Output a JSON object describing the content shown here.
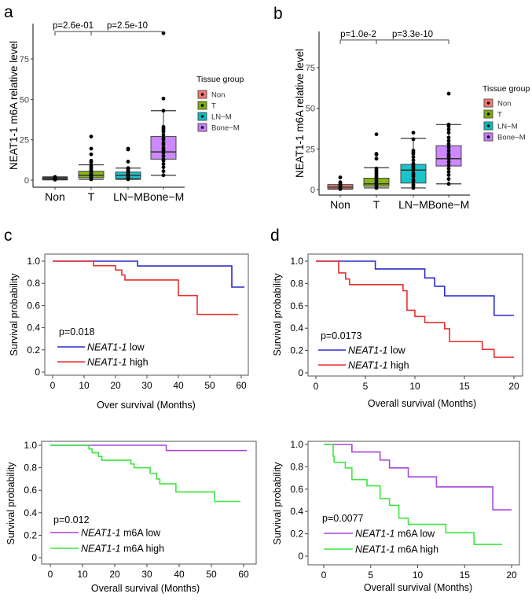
{
  "panels": [
    "a",
    "b",
    "c",
    "d"
  ],
  "chart_data": [
    {
      "type": "box",
      "panel": "a",
      "ylabel": "NEAT1-1 m6A relative level",
      "categories": [
        "Non",
        "T",
        "LN−M",
        "Bone−M"
      ],
      "colors": [
        "#F8766D",
        "#7CAE00",
        "#00BFC4",
        "#C77CFF"
      ],
      "yticks": [
        0,
        25,
        50,
        75
      ],
      "ylim": [
        -4,
        97
      ],
      "boxes": [
        {
          "low": 0.2,
          "q1": 0.5,
          "median": 1,
          "q3": 1.5,
          "high": 2,
          "points": [
            0.3,
            0.6,
            0.8,
            1,
            1.2,
            1.5,
            2
          ]
        },
        {
          "low": 0.5,
          "q1": 1.5,
          "median": 3,
          "q3": 5.5,
          "high": 9.5,
          "points": [
            0.5,
            1,
            1.5,
            2,
            2.5,
            3,
            3.5,
            4,
            5,
            6,
            7,
            8,
            9,
            11,
            12,
            16,
            19.5,
            27
          ]
        },
        {
          "low": 0.5,
          "q1": 1,
          "median": 3,
          "q3": 5,
          "high": 7.5,
          "points": [
            0.5,
            1,
            1.5,
            2,
            2.5,
            3,
            4,
            5,
            6,
            7,
            7.5,
            11.5,
            19,
            19.5
          ]
        },
        {
          "low": 3,
          "q1": 13,
          "median": 17.5,
          "q3": 27,
          "high": 43,
          "points": [
            3,
            5.5,
            8,
            10,
            12,
            13,
            15,
            17,
            18,
            19,
            20,
            22,
            23,
            25,
            26,
            28,
            30,
            31,
            32,
            33,
            43,
            50.5,
            91
          ]
        }
      ],
      "comparisons": [
        {
          "label": "p=2.6e-01",
          "from": 0,
          "to": 1,
          "y": 92
        },
        {
          "label": "p=2.5e-10",
          "from": 1,
          "to": 3,
          "y": 92
        }
      ],
      "legend": {
        "title": "Tissue group",
        "items": [
          "Non",
          "T",
          "LN−M",
          "Bone−M"
        ],
        "placement": "right"
      }
    },
    {
      "type": "box",
      "panel": "b",
      "ylabel": "NEAT1-1 m6A relative level",
      "categories": [
        "Non",
        "T",
        "LN−M",
        "Bone−M"
      ],
      "colors": [
        "#F8766D",
        "#7CAE00",
        "#00BFC4",
        "#C77CFF"
      ],
      "yticks": [
        0,
        25,
        50,
        75
      ],
      "ylim": [
        -4,
        97
      ],
      "boxes": [
        {
          "low": 0.3,
          "q1": 0.5,
          "median": 1.5,
          "q3": 3,
          "high": 3,
          "points": [
            0.3,
            0.8,
            1.2,
            1.8,
            2.5,
            3,
            4,
            4.5,
            7.5
          ]
        },
        {
          "low": 1,
          "q1": 2,
          "median": 3.5,
          "q3": 7,
          "high": 13.5,
          "points": [
            1,
            1.5,
            2,
            3,
            4,
            5,
            6,
            7,
            8,
            9,
            10,
            11,
            12,
            13,
            19,
            21.5,
            22,
            34
          ]
        },
        {
          "low": 1,
          "q1": 4,
          "median": 12,
          "q3": 15.5,
          "high": 31.5,
          "points": [
            1,
            2,
            3,
            5,
            6,
            8,
            9,
            10,
            12,
            13,
            14,
            15,
            16,
            18,
            20,
            22,
            23,
            24,
            31,
            35
          ]
        },
        {
          "low": 3.5,
          "q1": 14.5,
          "median": 19,
          "q3": 27,
          "high": 40,
          "points": [
            3.5,
            6.5,
            9,
            11,
            13,
            15,
            17,
            19,
            20,
            21,
            22,
            24,
            26,
            28,
            30,
            32,
            35,
            37,
            39,
            40,
            59
          ]
        }
      ],
      "comparisons": [
        {
          "label": "p=1.0e-2",
          "from": 0,
          "to": 1,
          "y": 92
        },
        {
          "label": "p=3.3e-10",
          "from": 1,
          "to": 3,
          "y": 92
        }
      ],
      "legend": {
        "title": "Tissue group",
        "items": [
          "Non",
          "T",
          "LN−M",
          "Bone−M"
        ],
        "placement": "right"
      }
    },
    {
      "type": "line",
      "subtype": "kaplan-meier",
      "panel": "c",
      "xlabel": "Over survival (Months)",
      "ylabel": "Survival probability",
      "xticks": [
        0,
        10,
        20,
        30,
        40,
        50,
        60
      ],
      "yticks": [
        0,
        0.2,
        0.4,
        0.6,
        0.8,
        1.0
      ],
      "ytick_labels": [
        "0",
        "0.2",
        "0.4",
        "0.6",
        "0.8",
        "1.0"
      ],
      "annotation": "p=0.018",
      "series": [
        {
          "gene": "NEAT1-1",
          "suffix": " low",
          "color": "#2B2BC8",
          "steps": [
            [
              0,
              1
            ],
            [
              27,
              0.957
            ],
            [
              57,
              0.766
            ]
          ],
          "end": 61
        },
        {
          "gene": "NEAT1-1",
          "suffix": " high",
          "color": "#E8302C",
          "steps": [
            [
              0,
              1
            ],
            [
              13,
              0.96
            ],
            [
              20,
              0.92
            ],
            [
              22,
              0.875
            ],
            [
              23,
              0.83
            ],
            [
              40,
              0.69
            ],
            [
              46,
              0.52
            ]
          ],
          "end": 59
        }
      ],
      "legend_placement": "bottom-left"
    },
    {
      "type": "line",
      "subtype": "kaplan-meier",
      "panel": "d",
      "xlabel": "Overall survival (Months)",
      "ylabel": "Survival probability",
      "xticks": [
        0,
        5,
        10,
        15,
        20
      ],
      "yticks": [
        0,
        0.2,
        0.4,
        0.6,
        0.8,
        1.0
      ],
      "ytick_labels": [
        "0",
        "0.2",
        "0.4",
        "0.6",
        "0.8",
        "1.0"
      ],
      "annotation": "p=0.0173",
      "series": [
        {
          "gene": "NEAT1-1",
          "suffix": " low",
          "color": "#2B2BC8",
          "steps": [
            [
              0,
              1
            ],
            [
              6,
              0.93
            ],
            [
              11,
              0.85
            ],
            [
              12,
              0.775
            ],
            [
              13,
              0.69
            ],
            [
              18,
              0.515
            ]
          ],
          "end": 20
        },
        {
          "gene": "NEAT1-1",
          "suffix": " high",
          "color": "#E8302C",
          "steps": [
            [
              0,
              1
            ],
            [
              2.3,
              0.895
            ],
            [
              3,
              0.84
            ],
            [
              3.4,
              0.79
            ],
            [
              8.8,
              0.735
            ],
            [
              9.2,
              0.56
            ],
            [
              10,
              0.505
            ],
            [
              11,
              0.45
            ],
            [
              13,
              0.395
            ],
            [
              13.5,
              0.28
            ],
            [
              16.8,
              0.21
            ],
            [
              18,
              0.14
            ]
          ],
          "end": 20
        }
      ],
      "legend_placement": "bottom-left"
    },
    {
      "type": "line",
      "subtype": "kaplan-meier",
      "panel": "c-lower",
      "xlabel": "Overall survival (Months)",
      "ylabel": "Survival probability",
      "xticks": [
        0,
        10,
        20,
        30,
        40,
        50,
        60
      ],
      "yticks": [
        0,
        0.2,
        0.4,
        0.6,
        0.8,
        1.0
      ],
      "ytick_labels": [
        "0",
        "0.2",
        "0.4",
        "0.6",
        "0.8",
        "1.0"
      ],
      "annotation": "p=0.012",
      "series": [
        {
          "gene": "NEAT1-1",
          "suffix": " m6A low",
          "color": "#A846D8",
          "steps": [
            [
              0,
              1
            ],
            [
              36,
              0.953
            ]
          ],
          "end": 61
        },
        {
          "gene": "NEAT1-1",
          "suffix": " m6A high",
          "color": "#3EE63E",
          "steps": [
            [
              0,
              1
            ],
            [
              12,
              0.967
            ],
            [
              13,
              0.933
            ],
            [
              15,
              0.9
            ],
            [
              16,
              0.867
            ],
            [
              25,
              0.833
            ],
            [
              26,
              0.8
            ],
            [
              31,
              0.75
            ],
            [
              33,
              0.7
            ],
            [
              34,
              0.657
            ],
            [
              39,
              0.585
            ],
            [
              51,
              0.5
            ]
          ],
          "end": 59
        }
      ],
      "legend_placement": "bottom-left"
    },
    {
      "type": "line",
      "subtype": "kaplan-meier",
      "panel": "d-lower",
      "xlabel": "Overall survival (Months)",
      "ylabel": "Survival probability",
      "xticks": [
        0,
        5,
        10,
        15,
        20
      ],
      "yticks": [
        0,
        0.2,
        0.4,
        0.6,
        0.8,
        1.0
      ],
      "ytick_labels": [
        "0",
        "0.2",
        "0.4",
        "0.6",
        "0.8",
        "1.0"
      ],
      "annotation": "p=0.0077",
      "series": [
        {
          "gene": "NEAT1-1",
          "suffix": " m6A low",
          "color": "#A846D8",
          "steps": [
            [
              0,
              1
            ],
            [
              3,
              0.933
            ],
            [
              6,
              0.86
            ],
            [
              7,
              0.79
            ],
            [
              9,
              0.71
            ],
            [
              12,
              0.62
            ],
            [
              18,
              0.415
            ]
          ],
          "end": 20
        },
        {
          "gene": "NEAT1-1",
          "suffix": " m6A high",
          "color": "#3EE63E",
          "steps": [
            [
              0,
              1
            ],
            [
              1,
              0.895
            ],
            [
              1.1,
              0.84
            ],
            [
              2.3,
              0.79
            ],
            [
              3,
              0.685
            ],
            [
              4.6,
              0.63
            ],
            [
              6,
              0.515
            ],
            [
              7,
              0.455
            ],
            [
              8,
              0.34
            ],
            [
              9,
              0.285
            ],
            [
              13,
              0.21
            ],
            [
              16,
              0.105
            ]
          ],
          "end": 19
        }
      ],
      "legend_placement": "bottom-left"
    }
  ]
}
